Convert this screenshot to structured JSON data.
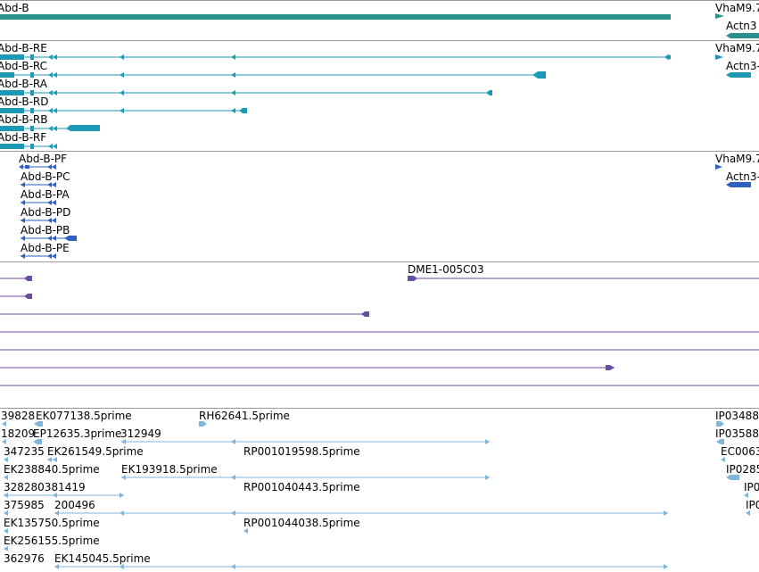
{
  "colors": {
    "gene": "#29908c",
    "transcript": "#1b99b5",
    "protein": "#2f5fbf",
    "clone": "#6a4ea3",
    "est": "#7fb5da",
    "separator": "#9a9a9a"
  },
  "tracks": {
    "genes": {
      "labels": [
        "Abd-B",
        "VhaM9.7",
        "Actn3"
      ]
    },
    "transcripts": {
      "labels": [
        "Abd-B-RE",
        "Abd-B-RC",
        "Abd-B-RA",
        "Abd-B-RD",
        "Abd-B-RB",
        "Abd-B-RF",
        "VhaM9.7",
        "Actn3-"
      ]
    },
    "proteins": {
      "labels": [
        "Abd-B-PF",
        "Abd-B-PC",
        "Abd-B-PA",
        "Abd-B-PD",
        "Abd-B-PB",
        "Abd-B-PE",
        "VhaM9.7",
        "Actn3-"
      ]
    },
    "clones": {
      "labels": [
        "DME1-005C03"
      ]
    },
    "ests": {
      "labels": [
        "39828",
        "EK077138.5prime",
        "RH62641.5prime",
        "IP03488",
        "18209",
        "EP12635.3prime",
        "312949",
        "IP03588",
        "347235",
        "EK261549.5prime",
        "RP001019598.5prime",
        "EC0063",
        "EK238840.5prime",
        "EK193918.5prime",
        "IP0285",
        "328280381419",
        "RP001040443.5prime",
        "IP0",
        "375985",
        "200496",
        "IP0",
        "EK135750.5prime",
        "RP001044038.5prime",
        "EK256155.5prime",
        "362976",
        "EK145045.5prime"
      ]
    }
  }
}
